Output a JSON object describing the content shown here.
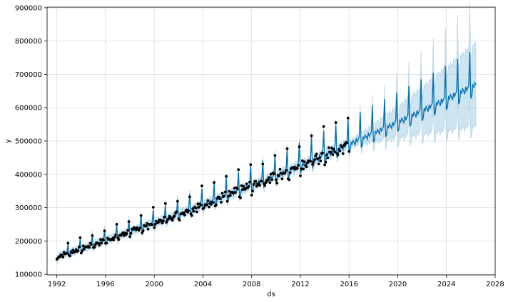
{
  "chart_data": {
    "type": "line",
    "title": "",
    "xlabel": "ds",
    "ylabel": "y",
    "xlim": [
      1991.2,
      2028.0
    ],
    "ylim": [
      98000,
      902000
    ],
    "xticks": [
      1992,
      1996,
      2000,
      2004,
      2008,
      2012,
      2016,
      2020,
      2024,
      2028
    ],
    "yticks": [
      100000,
      200000,
      300000,
      400000,
      500000,
      600000,
      700000,
      800000,
      900000
    ],
    "grid": true,
    "history_start": 1992.0,
    "history_end": 2016.08,
    "forecast_end": 2026.4,
    "trend": {
      "start": 152000,
      "slope_per_year": 11800,
      "level_2016": 435000
    },
    "seasonal_pattern": [
      -0.045,
      -0.035,
      0.012,
      0.0,
      0.018,
      0.005,
      -0.012,
      0.02,
      0.0,
      0.012,
      0.02,
      0.17
    ],
    "uncertainty_band": {
      "half_width_at_history_end": 10000,
      "half_width_at_forecast_end": 125000
    },
    "series": [
      {
        "name": "actual",
        "kind": "points",
        "color": "#000000"
      },
      {
        "name": "yhat",
        "kind": "line",
        "color": "#0072B2"
      },
      {
        "name": "yhat_interval",
        "kind": "band",
        "color": "#0072B2",
        "opacity": 0.2
      }
    ],
    "colors": {
      "line": "#0072B2",
      "band": "#a6cee3",
      "points": "#000000",
      "grid": "#dddddd"
    }
  }
}
